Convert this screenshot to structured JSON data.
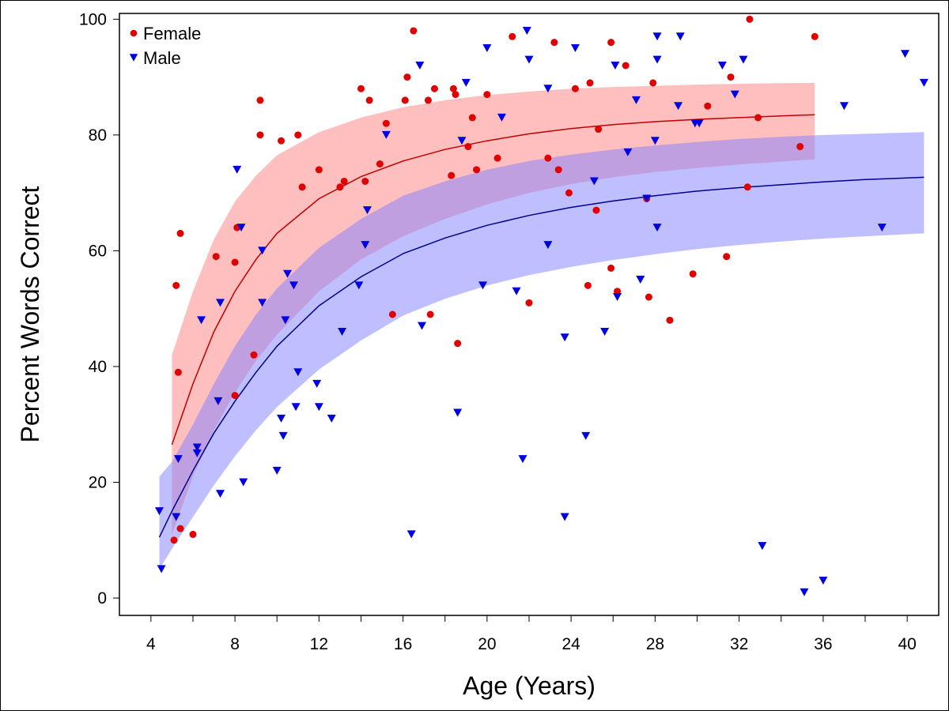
{
  "chart_data": {
    "type": "scatter",
    "xlabel": "Age (Years)",
    "ylabel": "Percent Words Correct",
    "xlim": [
      2.5,
      41.5
    ],
    "ylim": [
      -3,
      101
    ],
    "xticks_labeled": [
      4,
      8,
      12,
      16,
      20,
      24,
      28,
      32,
      36,
      40
    ],
    "xticks_minor": [
      6,
      10,
      14,
      18,
      22,
      26,
      30,
      34,
      38
    ],
    "yticks": [
      0,
      20,
      40,
      60,
      80,
      100
    ],
    "legend": {
      "position": "top-left"
    },
    "series": [
      {
        "name": "Female",
        "marker": "circle",
        "color": "#e00000",
        "fit_color": "#c00000",
        "band_color": "#ff8080",
        "points": [
          [
            5.1,
            10
          ],
          [
            5.2,
            54
          ],
          [
            5.3,
            39
          ],
          [
            5.4,
            12
          ],
          [
            5.4,
            63
          ],
          [
            6.0,
            11
          ],
          [
            7.1,
            59
          ],
          [
            8.0,
            35
          ],
          [
            8.0,
            58
          ],
          [
            8.1,
            64
          ],
          [
            8.9,
            42
          ],
          [
            9.2,
            80
          ],
          [
            9.2,
            86
          ],
          [
            10.2,
            79
          ],
          [
            11.0,
            80
          ],
          [
            11.2,
            71
          ],
          [
            12.0,
            74
          ],
          [
            13.0,
            71
          ],
          [
            13.2,
            72
          ],
          [
            14.0,
            88
          ],
          [
            14.2,
            72
          ],
          [
            14.4,
            86
          ],
          [
            14.9,
            75
          ],
          [
            15.2,
            82
          ],
          [
            15.5,
            49
          ],
          [
            16.1,
            86
          ],
          [
            16.2,
            90
          ],
          [
            16.5,
            98
          ],
          [
            17.2,
            86
          ],
          [
            17.3,
            49
          ],
          [
            17.5,
            88
          ],
          [
            18.3,
            73
          ],
          [
            18.4,
            88
          ],
          [
            18.5,
            87
          ],
          [
            18.6,
            44
          ],
          [
            19.1,
            78
          ],
          [
            19.3,
            83
          ],
          [
            19.5,
            74
          ],
          [
            20.0,
            87
          ],
          [
            20.5,
            76
          ],
          [
            21.2,
            97
          ],
          [
            22.0,
            51
          ],
          [
            22.9,
            76
          ],
          [
            23.2,
            96
          ],
          [
            23.4,
            74
          ],
          [
            23.9,
            70
          ],
          [
            24.2,
            88
          ],
          [
            24.8,
            54
          ],
          [
            24.9,
            89
          ],
          [
            25.2,
            67
          ],
          [
            25.3,
            81
          ],
          [
            25.9,
            96
          ],
          [
            25.9,
            57
          ],
          [
            26.2,
            53
          ],
          [
            26.6,
            92
          ],
          [
            27.6,
            69
          ],
          [
            27.7,
            52
          ],
          [
            27.9,
            89
          ],
          [
            28.7,
            48
          ],
          [
            29.8,
            56
          ],
          [
            30.5,
            85
          ],
          [
            31.4,
            59
          ],
          [
            31.6,
            90
          ],
          [
            32.4,
            71
          ],
          [
            32.5,
            100
          ],
          [
            32.9,
            83
          ],
          [
            34.9,
            78
          ],
          [
            35.6,
            97
          ]
        ],
        "fit": {
          "x": [
            5.0,
            6,
            7,
            8,
            9,
            10,
            12,
            14,
            16,
            18,
            20,
            22,
            24,
            26,
            28,
            30,
            32,
            34,
            35.6
          ],
          "y": [
            26.5,
            37,
            46,
            53,
            58.5,
            63,
            69,
            72.8,
            75.5,
            77.5,
            79,
            80.2,
            81.1,
            81.8,
            82.3,
            82.7,
            83.0,
            83.3,
            83.5
          ],
          "lower": [
            11,
            21,
            29,
            35.5,
            41,
            45.5,
            53,
            58.5,
            62.5,
            65.5,
            68,
            70,
            71.5,
            72.7,
            73.6,
            74.3,
            74.9,
            75.4,
            75.8
          ],
          "upper": [
            42,
            53,
            62,
            68.5,
            73,
            76.5,
            80.5,
            83,
            84.8,
            86,
            86.9,
            87.5,
            88,
            88.3,
            88.5,
            88.7,
            88.85,
            88.95,
            89
          ]
        }
      },
      {
        "name": "Male",
        "marker": "triangle-down",
        "color": "#0000e0",
        "fit_color": "#00008b",
        "band_color": "#8080ff",
        "points": [
          [
            4.4,
            15
          ],
          [
            4.5,
            5
          ],
          [
            5.2,
            14
          ],
          [
            5.3,
            24
          ],
          [
            6.2,
            25
          ],
          [
            6.2,
            26
          ],
          [
            6.4,
            48
          ],
          [
            7.2,
            34
          ],
          [
            7.3,
            18
          ],
          [
            7.3,
            51
          ],
          [
            8.1,
            74
          ],
          [
            8.3,
            64
          ],
          [
            8.4,
            20
          ],
          [
            9.3,
            60
          ],
          [
            9.3,
            51
          ],
          [
            10.0,
            22
          ],
          [
            10.2,
            31
          ],
          [
            10.3,
            28
          ],
          [
            10.4,
            48
          ],
          [
            10.5,
            56
          ],
          [
            10.8,
            54
          ],
          [
            10.9,
            33
          ],
          [
            11.0,
            39
          ],
          [
            11.9,
            37
          ],
          [
            12.0,
            33
          ],
          [
            12.6,
            31
          ],
          [
            13.1,
            46
          ],
          [
            13.9,
            54
          ],
          [
            14.2,
            61
          ],
          [
            14.3,
            67
          ],
          [
            15.2,
            80
          ],
          [
            16.4,
            11
          ],
          [
            16.8,
            92
          ],
          [
            16.9,
            47
          ],
          [
            18.6,
            32
          ],
          [
            18.8,
            79
          ],
          [
            19.0,
            89
          ],
          [
            19.8,
            54
          ],
          [
            20.0,
            95
          ],
          [
            20.7,
            83
          ],
          [
            21.4,
            53
          ],
          [
            21.7,
            24
          ],
          [
            21.9,
            98
          ],
          [
            22.0,
            93
          ],
          [
            22.9,
            88
          ],
          [
            22.9,
            61
          ],
          [
            23.7,
            14
          ],
          [
            23.7,
            45
          ],
          [
            24.2,
            95
          ],
          [
            24.7,
            28
          ],
          [
            25.1,
            72
          ],
          [
            25.6,
            46
          ],
          [
            26.1,
            92
          ],
          [
            26.2,
            52
          ],
          [
            26.7,
            77
          ],
          [
            27.1,
            86
          ],
          [
            27.3,
            55
          ],
          [
            27.6,
            69
          ],
          [
            28.0,
            79
          ],
          [
            28.1,
            97
          ],
          [
            28.1,
            93
          ],
          [
            28.1,
            64
          ],
          [
            29.1,
            85
          ],
          [
            29.2,
            97
          ],
          [
            29.9,
            82
          ],
          [
            30.1,
            82
          ],
          [
            31.2,
            92
          ],
          [
            31.8,
            87
          ],
          [
            32.2,
            93
          ],
          [
            33.1,
            9
          ],
          [
            35.1,
            1
          ],
          [
            36.0,
            3
          ],
          [
            37.0,
            85
          ],
          [
            38.8,
            64
          ],
          [
            39.9,
            94
          ],
          [
            40.8,
            89
          ]
        ],
        "fit": {
          "x": [
            4.4,
            5,
            6,
            7,
            8,
            9,
            10,
            12,
            14,
            16,
            18,
            20,
            22,
            24,
            26,
            28,
            30,
            32,
            34,
            36,
            38,
            40.8
          ],
          "y": [
            10.5,
            15,
            22,
            28.5,
            34,
            39,
            43.5,
            50.5,
            55.5,
            59.5,
            62.2,
            64.4,
            66.1,
            67.5,
            68.6,
            69.5,
            70.3,
            70.9,
            71.4,
            71.9,
            72.3,
            72.7
          ],
          "lower": [
            5,
            8.5,
            14,
            19.5,
            24.5,
            29,
            33,
            39.5,
            44.5,
            48.8,
            51.7,
            54,
            55.8,
            57.2,
            58.4,
            59.4,
            60.3,
            61,
            61.6,
            62.1,
            62.5,
            63
          ],
          "upper": [
            21,
            23.5,
            30,
            37,
            43.5,
            49,
            53.5,
            60.5,
            65.5,
            69.5,
            72,
            74,
            75.5,
            76.6,
            77.5,
            78.2,
            78.8,
            79.3,
            79.7,
            80,
            80.2,
            80.5
          ]
        }
      }
    ]
  }
}
